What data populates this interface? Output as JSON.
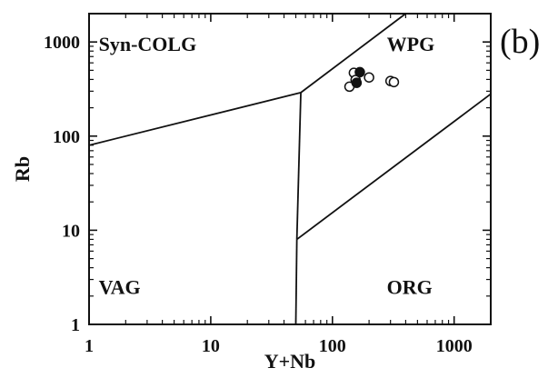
{
  "chart_data": {
    "type": "scatter",
    "panel_label": "(b)",
    "xlabel": "Y+Nb",
    "ylabel": "Rb",
    "xscale": "log",
    "yscale": "log",
    "xlim": [
      1,
      2000
    ],
    "ylim": [
      1,
      2000
    ],
    "x_ticks": [
      {
        "value": 1,
        "label": "1"
      },
      {
        "value": 10,
        "label": "10"
      },
      {
        "value": 100,
        "label": "100"
      },
      {
        "value": 1000,
        "label": "1000"
      }
    ],
    "y_ticks": [
      {
        "value": 1,
        "label": "1"
      },
      {
        "value": 10,
        "label": "10"
      },
      {
        "value": 100,
        "label": "100"
      },
      {
        "value": 1000,
        "label": "1000"
      }
    ],
    "field_labels": [
      {
        "text": "Syn-COLG",
        "x": 1.2,
        "y": 800
      },
      {
        "text": "WPG",
        "x": 280,
        "y": 800
      },
      {
        "text": "VAG",
        "x": 1.2,
        "y": 2.1
      },
      {
        "text": "ORG",
        "x": 280,
        "y": 2.1
      }
    ],
    "boundaries": [
      {
        "name": "VAG/Syn-COLG",
        "points": [
          [
            1,
            80
          ],
          [
            55,
            290
          ]
        ]
      },
      {
        "name": "Syn-COLG/WPG",
        "points": [
          [
            55,
            290
          ],
          [
            400,
            2000
          ]
        ]
      },
      {
        "name": "VAG/WPG",
        "points": [
          [
            55,
            290
          ],
          [
            51,
            8
          ]
        ]
      },
      {
        "name": "VAG/ORG",
        "points": [
          [
            51,
            8
          ],
          [
            50,
            1
          ]
        ]
      },
      {
        "name": "WPG/ORG",
        "points": [
          [
            51,
            8
          ],
          [
            2000,
            280
          ]
        ]
      }
    ],
    "series": [
      {
        "marker": "open-circle",
        "points": [
          [
            150,
            470
          ],
          [
            138,
            335
          ],
          [
            155,
            395
          ],
          [
            200,
            420
          ],
          [
            300,
            385
          ],
          [
            320,
            375
          ]
        ]
      },
      {
        "marker": "filled-circle",
        "points": [
          [
            168,
            478
          ],
          [
            158,
            368
          ]
        ]
      }
    ],
    "grid": false,
    "legend": "none"
  }
}
